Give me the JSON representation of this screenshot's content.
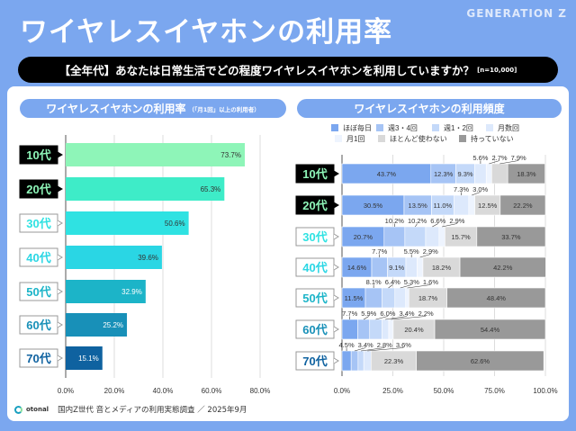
{
  "header": {
    "title": "ワイヤレスイヤホンの利用率",
    "badge": "GENERATION Z"
  },
  "question": {
    "text": "【全年代】あなたは日常生活でどの程度ワイヤレスイヤホンを利用していますか？",
    "n": "[n=10,000]"
  },
  "left_title": {
    "main": "ワイヤレスイヤホンの利用率",
    "note": "（「月1回」以上の利用者）"
  },
  "right_title": "ワイヤレスイヤホンの利用頻度",
  "footer": {
    "brand": "otonal",
    "source": "国内Z世代 音とメディアの利用実態調査 ／ 2025年9月"
  },
  "chart_data": [
    {
      "type": "bar",
      "orientation": "horizontal",
      "categories": [
        "10代",
        "20代",
        "30代",
        "40代",
        "50代",
        "60代",
        "70代"
      ],
      "values": [
        73.7,
        65.3,
        50.6,
        39.6,
        32.9,
        25.2,
        15.1
      ],
      "colors": [
        "#8ef5b8",
        "#3eecc8",
        "#2fe2e2",
        "#2ad6e4",
        "#1cb4c8",
        "#1890b8",
        "#0f62a0"
      ],
      "xlim": [
        0,
        80
      ],
      "ticks": [
        "0.0%",
        "20.0%",
        "40.0%",
        "60.0%",
        "80.0%"
      ],
      "grid": true
    },
    {
      "type": "bar",
      "orientation": "horizontal",
      "stacked": true,
      "legend": "top",
      "categories": [
        "10代",
        "20代",
        "30代",
        "40代",
        "50代",
        "60代",
        "70代"
      ],
      "series": [
        {
          "name": "ほぼ毎日",
          "color": "#7ba7ef",
          "values": [
            43.7,
            30.5,
            20.7,
            14.6,
            11.5,
            7.7,
            4.5
          ]
        },
        {
          "name": "週3・4回",
          "color": "#a6c4f5",
          "values": [
            12.3,
            13.5,
            10.2,
            7.7,
            8.1,
            5.9,
            3.4
          ]
        },
        {
          "name": "週1・2回",
          "color": "#c4d9f9",
          "values": [
            9.3,
            11.0,
            10.2,
            9.1,
            6.4,
            6.0,
            2.8
          ]
        },
        {
          "name": "月数回",
          "color": "#dde9fc",
          "values": [
            5.6,
            7.3,
            6.6,
            5.5,
            5.3,
            3.4,
            3.6
          ]
        },
        {
          "name": "月1回",
          "color": "#eef4fe",
          "values": [
            2.7,
            3.0,
            2.9,
            2.9,
            1.6,
            2.2,
            null
          ]
        },
        {
          "name": "ほとんど使わない",
          "color": "#d9d9d9",
          "values": [
            7.9,
            12.5,
            15.7,
            18.2,
            18.7,
            20.4,
            22.3
          ]
        },
        {
          "name": "持っていない",
          "color": "#999999",
          "values": [
            18.3,
            22.2,
            33.7,
            42.2,
            48.4,
            54.4,
            62.6
          ]
        }
      ],
      "xlim": [
        0,
        100
      ],
      "ticks": [
        "0.0%",
        "25.0%",
        "50.0%",
        "75.0%",
        "100.0%"
      ],
      "grid": true
    }
  ]
}
